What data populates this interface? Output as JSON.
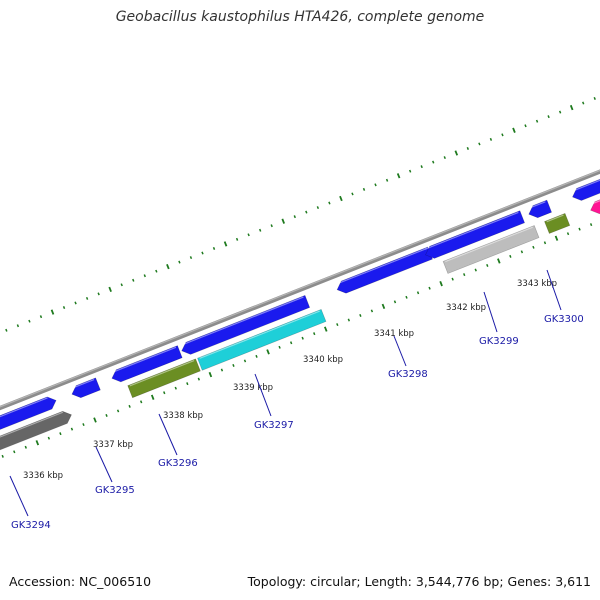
{
  "title": "Geobacillus kaustophilus HTA426, complete genome",
  "footer": {
    "accession": "Accession: NC_006510",
    "summary": "Topology: circular; Length: 3,544,776 bp; Genes: 3,611"
  },
  "colors": {
    "backbone": "#8c8c8c",
    "ticks": "#1e7a1e",
    "gene_blue": "#1a1aee",
    "gene_dark_gray": "#666666",
    "gene_olive": "#6b8e23",
    "gene_cyan": "#1ecfd8",
    "gene_light_gray": "#bdbdbd",
    "gene_pink": "#ff1493",
    "label_blue": "#1a1aa6"
  },
  "ruler_labels": [
    "3336 kbp",
    "3337 kbp",
    "3338 kbp",
    "3339 kbp",
    "3340 kbp",
    "3341 kbp",
    "3342 kbp",
    "3343 kbp"
  ],
  "gene_labels": [
    "GK3294",
    "GK3295",
    "GK3296",
    "GK3297",
    "GK3298",
    "GK3299",
    "GK3300"
  ]
}
